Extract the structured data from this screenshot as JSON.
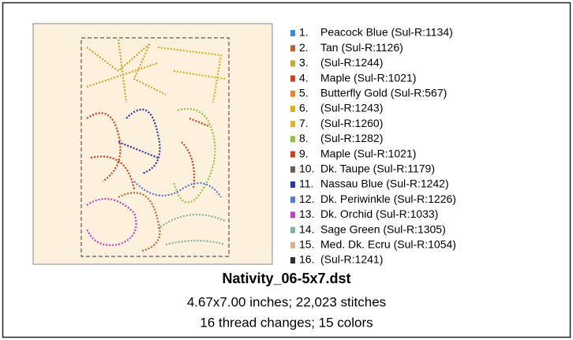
{
  "design": {
    "file_name": "Nativity_06-5x7.dst",
    "size_line": "4.67x7.00 inches; 22,023 stitches",
    "changes_line": "16 thread changes; 15 colors",
    "threads": [
      {
        "number": "1.",
        "name": "Peacock Blue (Sul-R:1134)",
        "color": "#3a8fd8"
      },
      {
        "number": "2.",
        "name": "Tan (Sul-R:1126)",
        "color": "#b8642a"
      },
      {
        "number": "3.",
        "name": "(Sul-R:1244)",
        "color": "#c8a830"
      },
      {
        "number": "4.",
        "name": "Maple (Sul-R:1021)",
        "color": "#c84020"
      },
      {
        "number": "5.",
        "name": "Butterfly Gold (Sul-R:567)",
        "color": "#e08830"
      },
      {
        "number": "6.",
        "name": "(Sul-R:1243)",
        "color": "#d8b020"
      },
      {
        "number": "7.",
        "name": "(Sul-R:1260)",
        "color": "#e8b030"
      },
      {
        "number": "8.",
        "name": "(Sul-R:1282)",
        "color": "#90c040"
      },
      {
        "number": "9.",
        "name": "Maple (Sul-R:1021)",
        "color": "#c84020"
      },
      {
        "number": "10.",
        "name": "Dk. Taupe (Sul-R:1179)",
        "color": "#6a5a58"
      },
      {
        "number": "11.",
        "name": "Nassau Blue (Sul-R:1242)",
        "color": "#2838a0"
      },
      {
        "number": "12.",
        "name": "Dk. Periwinkle (Sul-R:1226)",
        "color": "#5878d0"
      },
      {
        "number": "13.",
        "name": "Dk. Orchid (Sul-R:1033)",
        "color": "#c040c0"
      },
      {
        "number": "14.",
        "name": "Sage Green (Sul-R:1305)",
        "color": "#80b0a0"
      },
      {
        "number": "15.",
        "name": "Med. Dk. Ecru (Sul-R:1054)",
        "color": "#d8b090"
      },
      {
        "number": "16.",
        "name": "(Sul-R:1241)",
        "color": "#303030"
      }
    ]
  }
}
